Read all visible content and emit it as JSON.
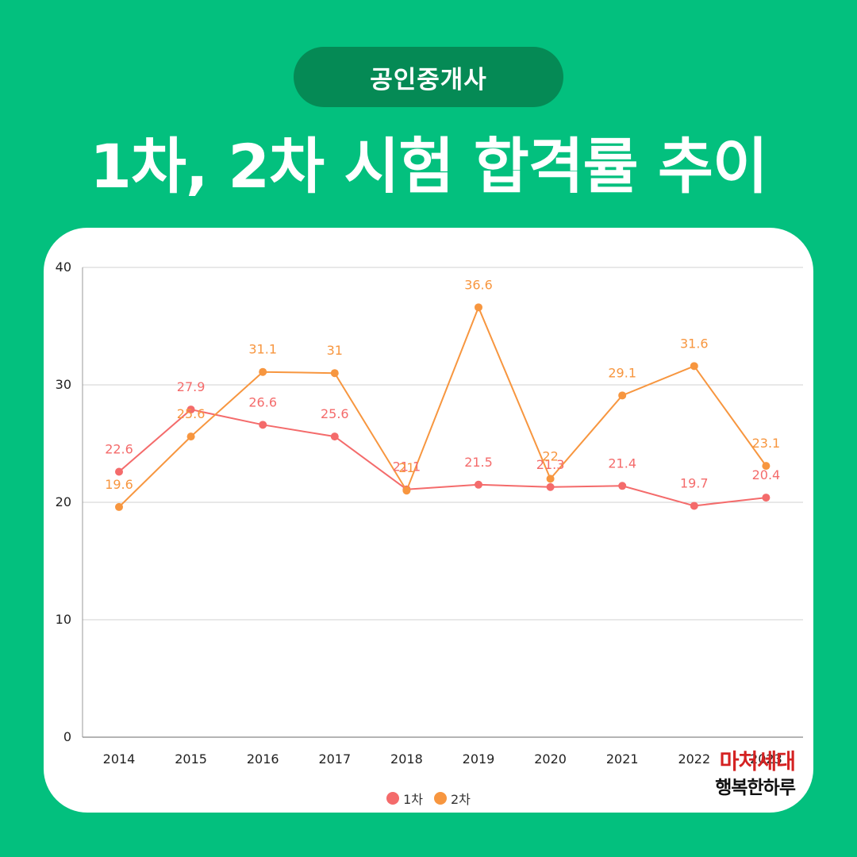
{
  "header": {
    "category": "공인중개사",
    "title": "1차, 2차 시험 합격률 추이"
  },
  "brand": {
    "name": "마처세대",
    "subtitle": "행복한하루"
  },
  "colors": {
    "background": "#03c07e",
    "pill": "#058a55",
    "series_1": "#f46b6b",
    "series_2": "#f7963f"
  },
  "chart_data": {
    "type": "line",
    "x": [
      "2014",
      "2015",
      "2016",
      "2017",
      "2018",
      "2019",
      "2020",
      "2021",
      "2022",
      "2023"
    ],
    "series": [
      {
        "name": "1차",
        "color": "#f46b6b",
        "values": [
          22.6,
          27.9,
          26.6,
          25.6,
          21.1,
          21.5,
          21.3,
          21.4,
          19.7,
          20.4
        ]
      },
      {
        "name": "2차",
        "color": "#f7963f",
        "values": [
          19.6,
          25.6,
          31.1,
          31,
          21,
          36.6,
          22,
          29.1,
          31.6,
          23.1
        ]
      }
    ],
    "ylim": [
      0,
      40
    ],
    "yticks": [
      0,
      10,
      20,
      30,
      40
    ],
    "grid": true,
    "legend_position": "bottom",
    "data_labels": true
  }
}
